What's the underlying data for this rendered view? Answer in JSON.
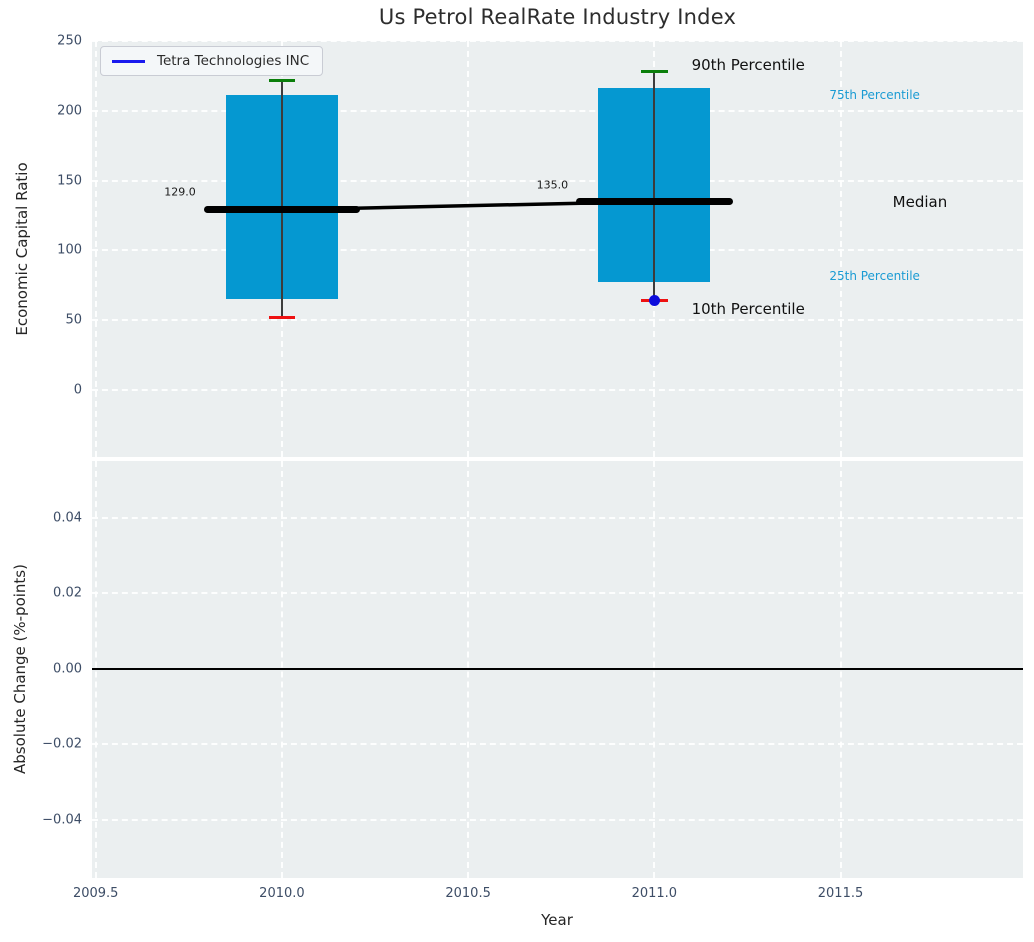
{
  "chart_data": [
    {
      "type": "box",
      "title": "Us Petrol RealRate Industry Index",
      "ylabel": "Economic Capital Ratio",
      "xlim": [
        2009.49,
        2011.99
      ],
      "ylim": [
        -48,
        250
      ],
      "yticks": [
        0,
        50,
        100,
        150,
        200,
        250
      ],
      "ytick_labels": [
        "0",
        "50",
        "100",
        "150",
        "200",
        "250"
      ],
      "xticks": [
        2009.5,
        2010.0,
        2010.5,
        2011.0,
        2011.5
      ],
      "grid": true,
      "legend": {
        "label": "Tetra Technologies INC",
        "line_color": "#1a1aee",
        "position": "upper-left"
      },
      "colors": {
        "bar": "#0598d1",
        "axes_bg": "#ebeff0",
        "grid": "#ffffff",
        "median": "#000000",
        "whisker": "#3c3c3c",
        "cap_top": "#0a7e0a",
        "cap_bottom": "#ee1111",
        "company_dot": "#0c0cdc"
      },
      "boxes": [
        {
          "x": 2010,
          "p90": 222,
          "p75": 211,
          "median": 129,
          "p25": 65,
          "p10": 52,
          "median_label": "129.0",
          "median_label_y": 142,
          "company_value": null
        },
        {
          "x": 2011,
          "p90": 228,
          "p75": 216,
          "median": 135,
          "p25": 77,
          "p10": 64,
          "median_label": "135.0",
          "median_label_y": 147,
          "company_value": 64
        }
      ],
      "median_trend": {
        "x": [
          2010,
          2011
        ],
        "y": [
          129,
          135
        ]
      },
      "annotations": [
        {
          "text": "90th Percentile",
          "x": 2011.1,
          "y": 233,
          "size": 15,
          "color": "#111111"
        },
        {
          "text": "10th Percentile",
          "x": 2011.1,
          "y": 58,
          "size": 15,
          "color": "#111111"
        },
        {
          "text": "75th Percentile",
          "x": 2011.47,
          "y": 211,
          "size": 12,
          "color": "#1a9bd3"
        },
        {
          "text": "Median",
          "x": 2011.64,
          "y": 135,
          "size": 15,
          "color": "#111111"
        },
        {
          "text": "25th Percentile",
          "x": 2011.47,
          "y": 82,
          "size": 12,
          "color": "#1a9bd3"
        }
      ]
    },
    {
      "type": "line",
      "ylabel": "Absolute Change (%-points)",
      "xlabel": "Year",
      "xlim": [
        2009.49,
        2011.99
      ],
      "ylim": [
        -0.0554,
        0.0551
      ],
      "yticks": [
        -0.04,
        -0.02,
        0.0,
        0.02,
        0.04
      ],
      "ytick_labels": [
        "−0.04",
        "−0.02",
        "0.00",
        "0.02",
        "0.04"
      ],
      "xticks": [
        2009.5,
        2010.0,
        2010.5,
        2011.0,
        2011.5
      ],
      "xtick_labels": [
        "2009.5",
        "2010.0",
        "2010.5",
        "2011.0",
        "2011.5"
      ],
      "zero_line": 0.0,
      "series": []
    }
  ]
}
